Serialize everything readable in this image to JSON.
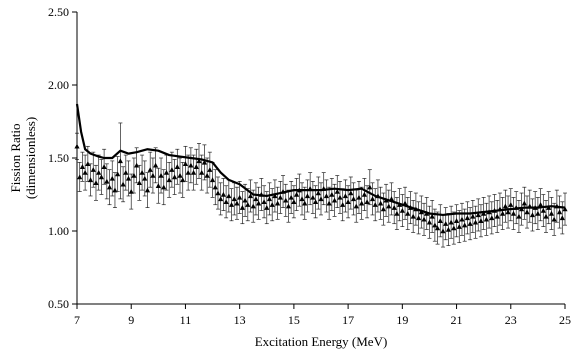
{
  "chart_data": {
    "type": "scatter",
    "title": "",
    "xlabel": "Excitation Energy (MeV)",
    "ylabel_lines": [
      "Fission Ratio",
      "(dimensionless)"
    ],
    "xlim": [
      7,
      25
    ],
    "ylim": [
      0.5,
      2.5
    ],
    "xticks": [
      7,
      9,
      11,
      13,
      15,
      17,
      19,
      21,
      23,
      25
    ],
    "yticks": [
      0.5,
      1.0,
      1.5,
      2.0,
      2.5
    ],
    "xtick_labels": [
      "7",
      "9",
      "11",
      "13",
      "15",
      "17",
      "19",
      "21",
      "23",
      "25"
    ],
    "ytick_labels": [
      "0.50",
      "1.00",
      "1.50",
      "2.00",
      "2.50"
    ],
    "grid": false,
    "legend": "none",
    "series": [
      {
        "kind": "points_with_error_bars",
        "marker": "triangle",
        "color": "#000000",
        "points": [
          [
            7.0,
            1.58,
            0.09
          ],
          [
            7.1,
            1.37,
            0.1
          ],
          [
            7.2,
            1.44,
            0.1
          ],
          [
            7.3,
            1.4,
            0.12
          ],
          [
            7.4,
            1.46,
            0.12
          ],
          [
            7.5,
            1.35,
            0.11
          ],
          [
            7.6,
            1.42,
            0.12
          ],
          [
            7.7,
            1.33,
            0.12
          ],
          [
            7.8,
            1.4,
            0.12
          ],
          [
            7.9,
            1.37,
            0.12
          ],
          [
            8.0,
            1.44,
            0.12
          ],
          [
            8.1,
            1.34,
            0.12
          ],
          [
            8.2,
            1.3,
            0.12
          ],
          [
            8.3,
            1.36,
            0.12
          ],
          [
            8.4,
            1.28,
            0.12
          ],
          [
            8.5,
            1.39,
            0.12
          ],
          [
            8.6,
            1.48,
            0.26
          ],
          [
            8.7,
            1.32,
            0.12
          ],
          [
            8.8,
            1.4,
            0.12
          ],
          [
            8.9,
            1.36,
            0.12
          ],
          [
            9.0,
            1.27,
            0.12
          ],
          [
            9.1,
            1.38,
            0.12
          ],
          [
            9.2,
            1.45,
            0.12
          ],
          [
            9.3,
            1.33,
            0.12
          ],
          [
            9.4,
            1.4,
            0.12
          ],
          [
            9.5,
            1.36,
            0.12
          ],
          [
            9.6,
            1.28,
            0.12
          ],
          [
            9.7,
            1.42,
            0.12
          ],
          [
            9.8,
            1.38,
            0.12
          ],
          [
            9.9,
            1.45,
            0.12
          ],
          [
            10.0,
            1.31,
            0.12
          ],
          [
            10.1,
            1.38,
            0.12
          ],
          [
            10.2,
            1.3,
            0.12
          ],
          [
            10.3,
            1.4,
            0.12
          ],
          [
            10.4,
            1.35,
            0.12
          ],
          [
            10.5,
            1.42,
            0.12
          ],
          [
            10.6,
            1.37,
            0.12
          ],
          [
            10.7,
            1.44,
            0.12
          ],
          [
            10.8,
            1.38,
            0.12
          ],
          [
            10.9,
            1.35,
            0.12
          ],
          [
            11.0,
            1.46,
            0.12
          ],
          [
            11.1,
            1.4,
            0.12
          ],
          [
            11.2,
            1.45,
            0.12
          ],
          [
            11.3,
            1.4,
            0.12
          ],
          [
            11.4,
            1.44,
            0.12
          ],
          [
            11.5,
            1.48,
            0.12
          ],
          [
            11.6,
            1.4,
            0.12
          ],
          [
            11.7,
            1.47,
            0.12
          ],
          [
            11.8,
            1.38,
            0.12
          ],
          [
            11.9,
            1.42,
            0.12
          ],
          [
            12.0,
            1.35,
            0.12
          ],
          [
            12.1,
            1.3,
            0.12
          ],
          [
            12.2,
            1.26,
            0.11
          ],
          [
            12.3,
            1.22,
            0.11
          ],
          [
            12.4,
            1.25,
            0.11
          ],
          [
            12.5,
            1.2,
            0.11
          ],
          [
            12.6,
            1.24,
            0.11
          ],
          [
            12.7,
            1.18,
            0.11
          ],
          [
            12.8,
            1.22,
            0.11
          ],
          [
            12.9,
            1.19,
            0.11
          ],
          [
            13.0,
            1.23,
            0.11
          ],
          [
            13.1,
            1.16,
            0.11
          ],
          [
            13.2,
            1.21,
            0.11
          ],
          [
            13.3,
            1.18,
            0.11
          ],
          [
            13.4,
            1.24,
            0.11
          ],
          [
            13.5,
            1.17,
            0.11
          ],
          [
            13.6,
            1.22,
            0.11
          ],
          [
            13.7,
            1.19,
            0.11
          ],
          [
            13.8,
            1.25,
            0.11
          ],
          [
            13.9,
            1.2,
            0.11
          ],
          [
            14.0,
            1.16,
            0.11
          ],
          [
            14.1,
            1.22,
            0.11
          ],
          [
            14.2,
            1.18,
            0.11
          ],
          [
            14.3,
            1.24,
            0.11
          ],
          [
            14.4,
            1.19,
            0.11
          ],
          [
            14.5,
            1.23,
            0.11
          ],
          [
            14.6,
            1.27,
            0.11
          ],
          [
            14.7,
            1.21,
            0.11
          ],
          [
            14.8,
            1.17,
            0.11
          ],
          [
            14.9,
            1.23,
            0.11
          ],
          [
            15.0,
            1.2,
            0.11
          ],
          [
            15.1,
            1.25,
            0.11
          ],
          [
            15.2,
            1.28,
            0.11
          ],
          [
            15.3,
            1.22,
            0.11
          ],
          [
            15.4,
            1.19,
            0.11
          ],
          [
            15.5,
            1.24,
            0.11
          ],
          [
            15.6,
            1.29,
            0.11
          ],
          [
            15.7,
            1.23,
            0.11
          ],
          [
            15.8,
            1.2,
            0.11
          ],
          [
            15.9,
            1.26,
            0.11
          ],
          [
            16.0,
            1.22,
            0.11
          ],
          [
            16.1,
            1.29,
            0.11
          ],
          [
            16.2,
            1.24,
            0.11
          ],
          [
            16.3,
            1.19,
            0.11
          ],
          [
            16.4,
            1.25,
            0.11
          ],
          [
            16.5,
            1.21,
            0.11
          ],
          [
            16.6,
            1.27,
            0.11
          ],
          [
            16.7,
            1.23,
            0.11
          ],
          [
            16.8,
            1.18,
            0.11
          ],
          [
            16.9,
            1.24,
            0.11
          ],
          [
            17.0,
            1.2,
            0.11
          ],
          [
            17.1,
            1.26,
            0.11
          ],
          [
            17.2,
            1.22,
            0.11
          ],
          [
            17.3,
            1.17,
            0.11
          ],
          [
            17.4,
            1.23,
            0.11
          ],
          [
            17.5,
            1.19,
            0.11
          ],
          [
            17.6,
            1.25,
            0.11
          ],
          [
            17.7,
            1.2,
            0.11
          ],
          [
            17.8,
            1.3,
            0.12
          ],
          [
            17.9,
            1.22,
            0.11
          ],
          [
            18.0,
            1.18,
            0.11
          ],
          [
            18.1,
            1.24,
            0.11
          ],
          [
            18.2,
            1.19,
            0.11
          ],
          [
            18.3,
            1.15,
            0.11
          ],
          [
            18.4,
            1.21,
            0.11
          ],
          [
            18.5,
            1.17,
            0.11
          ],
          [
            18.6,
            1.22,
            0.11
          ],
          [
            18.7,
            1.16,
            0.11
          ],
          [
            18.8,
            1.12,
            0.11
          ],
          [
            18.9,
            1.18,
            0.11
          ],
          [
            19.0,
            1.14,
            0.11
          ],
          [
            19.1,
            1.19,
            0.11
          ],
          [
            19.2,
            1.12,
            0.11
          ],
          [
            19.3,
            1.16,
            0.11
          ],
          [
            19.4,
            1.1,
            0.11
          ],
          [
            19.5,
            1.15,
            0.11
          ],
          [
            19.6,
            1.09,
            0.11
          ],
          [
            19.7,
            1.13,
            0.11
          ],
          [
            19.8,
            1.08,
            0.11
          ],
          [
            19.9,
            1.12,
            0.11
          ],
          [
            20.0,
            1.06,
            0.11
          ],
          [
            20.1,
            1.1,
            0.11
          ],
          [
            20.2,
            1.04,
            0.11
          ],
          [
            20.3,
            1.02,
            0.11
          ],
          [
            20.4,
            1.07,
            0.11
          ],
          [
            20.5,
            1.0,
            0.11
          ],
          [
            20.6,
            1.05,
            0.11
          ],
          [
            20.7,
            1.01,
            0.11
          ],
          [
            20.8,
            1.06,
            0.11
          ],
          [
            20.9,
            1.02,
            0.11
          ],
          [
            21.0,
            1.07,
            0.11
          ],
          [
            21.1,
            1.03,
            0.11
          ],
          [
            21.2,
            1.08,
            0.11
          ],
          [
            21.3,
            1.04,
            0.11
          ],
          [
            21.4,
            1.09,
            0.11
          ],
          [
            21.5,
            1.05,
            0.11
          ],
          [
            21.6,
            1.1,
            0.11
          ],
          [
            21.7,
            1.06,
            0.11
          ],
          [
            21.8,
            1.11,
            0.11
          ],
          [
            21.9,
            1.07,
            0.11
          ],
          [
            22.0,
            1.12,
            0.11
          ],
          [
            22.1,
            1.08,
            0.11
          ],
          [
            22.2,
            1.13,
            0.11
          ],
          [
            22.3,
            1.09,
            0.11
          ],
          [
            22.4,
            1.14,
            0.11
          ],
          [
            22.5,
            1.1,
            0.11
          ],
          [
            22.6,
            1.15,
            0.11
          ],
          [
            22.7,
            1.12,
            0.11
          ],
          [
            22.8,
            1.17,
            0.11
          ],
          [
            22.9,
            1.13,
            0.11
          ],
          [
            23.0,
            1.18,
            0.11
          ],
          [
            23.1,
            1.12,
            0.11
          ],
          [
            23.2,
            1.16,
            0.11
          ],
          [
            23.3,
            1.1,
            0.11
          ],
          [
            23.4,
            1.15,
            0.11
          ],
          [
            23.5,
            1.19,
            0.11
          ],
          [
            23.6,
            1.13,
            0.11
          ],
          [
            23.7,
            1.17,
            0.11
          ],
          [
            23.8,
            1.11,
            0.11
          ],
          [
            23.9,
            1.16,
            0.11
          ],
          [
            24.0,
            1.12,
            0.11
          ],
          [
            24.1,
            1.18,
            0.11
          ],
          [
            24.2,
            1.14,
            0.11
          ],
          [
            24.3,
            1.1,
            0.11
          ],
          [
            24.4,
            1.16,
            0.11
          ],
          [
            24.5,
            1.12,
            0.11
          ],
          [
            24.6,
            1.08,
            0.11
          ],
          [
            24.7,
            1.17,
            0.11
          ],
          [
            24.8,
            1.13,
            0.11
          ],
          [
            24.9,
            1.09,
            0.11
          ],
          [
            25.0,
            1.15,
            0.11
          ]
        ]
      },
      {
        "kind": "line",
        "color": "#000000",
        "x": [
          7.0,
          7.15,
          7.3,
          7.5,
          7.8,
          8.0,
          8.3,
          8.6,
          8.9,
          9.2,
          9.6,
          10.0,
          10.4,
          10.8,
          11.2,
          11.6,
          12.0,
          12.3,
          12.6,
          13.0,
          13.5,
          14.0,
          14.5,
          15.0,
          15.5,
          16.0,
          16.5,
          17.0,
          17.5,
          18.0,
          18.5,
          19.0,
          19.5,
          20.0,
          20.5,
          21.0,
          21.5,
          22.0,
          22.5,
          23.0,
          23.5,
          24.0,
          24.5,
          25.0
        ],
        "y": [
          1.87,
          1.68,
          1.56,
          1.53,
          1.51,
          1.5,
          1.5,
          1.55,
          1.53,
          1.54,
          1.56,
          1.55,
          1.52,
          1.51,
          1.5,
          1.49,
          1.47,
          1.4,
          1.35,
          1.32,
          1.25,
          1.24,
          1.26,
          1.28,
          1.28,
          1.28,
          1.29,
          1.28,
          1.29,
          1.24,
          1.21,
          1.18,
          1.15,
          1.12,
          1.11,
          1.12,
          1.12,
          1.13,
          1.14,
          1.15,
          1.16,
          1.16,
          1.17,
          1.16
        ]
      }
    ]
  }
}
